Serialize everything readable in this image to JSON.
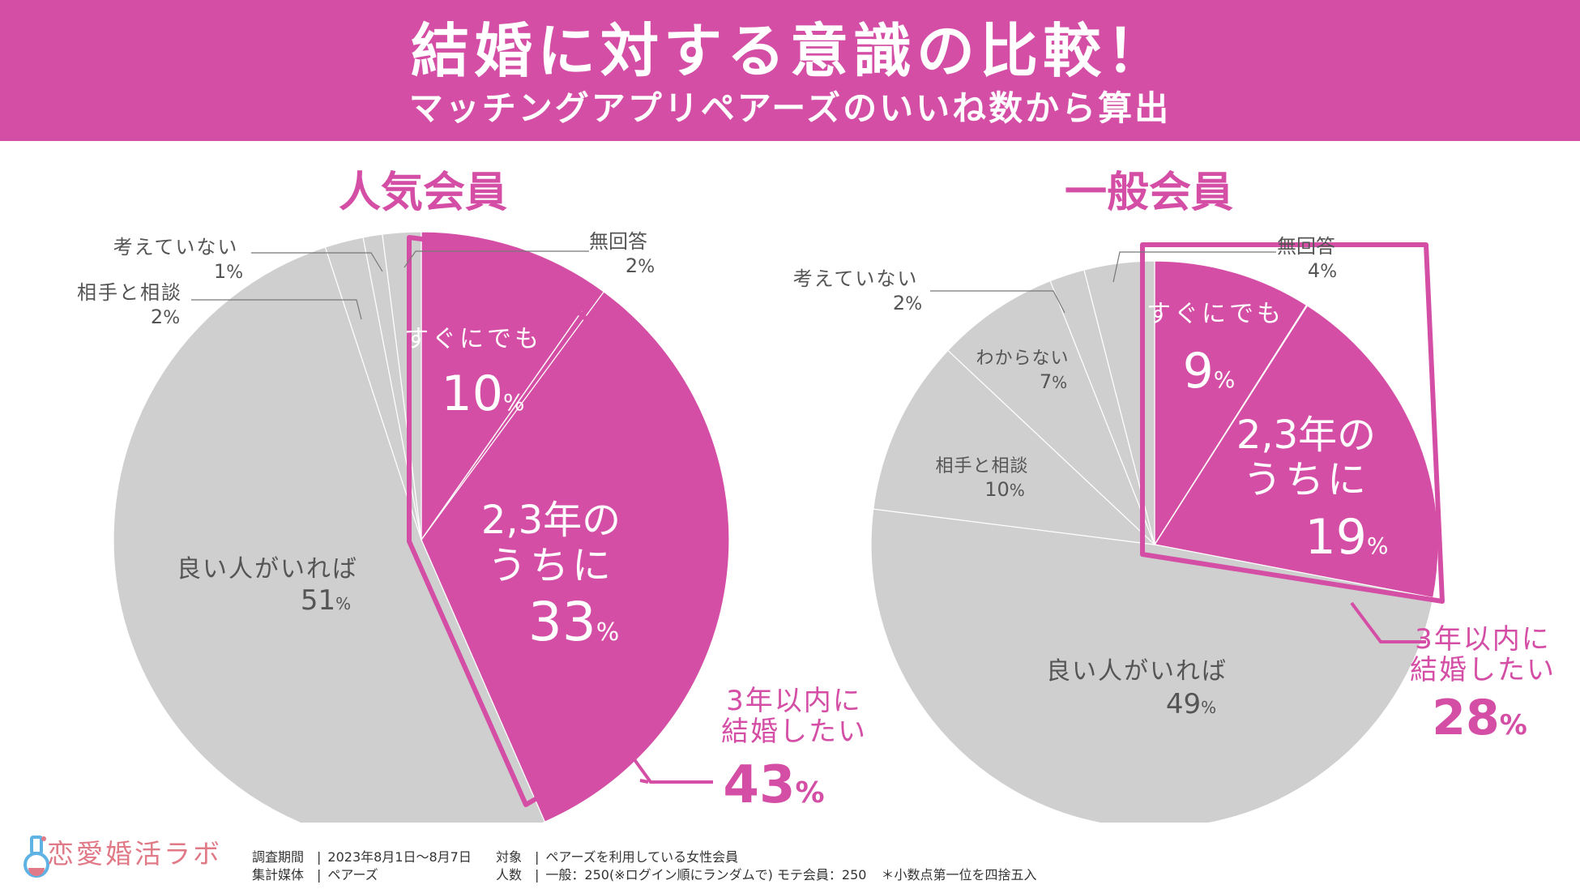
{
  "header": {
    "title": "結婚に対する意識の比較！",
    "subtitle": "マッチングアプリペアーズのいいね数から算出"
  },
  "colors": {
    "brand_pink": "#d44ea5",
    "slice_gray": "#d0cfd0",
    "label_gray": "#555555",
    "logo_pink": "#e07a87",
    "logo_blue": "#5fb2e4"
  },
  "chart_data": [
    {
      "type": "pie",
      "title": "人気会員",
      "slices": [
        {
          "label": "すぐにでも",
          "value": 10,
          "highlight": true
        },
        {
          "label": "2,3年のうちに",
          "value": 33,
          "highlight": true
        },
        {
          "label": "良い人がいれば",
          "value": 51,
          "highlight": false
        },
        {
          "label": "相手と相談",
          "value": 2,
          "highlight": false
        },
        {
          "label": "考えていない",
          "value": 1,
          "highlight": false
        },
        {
          "label": "無回答",
          "value": 2,
          "highlight": false
        }
      ],
      "summary": {
        "label": "3年以内に結婚したい",
        "value": 43
      }
    },
    {
      "type": "pie",
      "title": "一般会員",
      "slices": [
        {
          "label": "すぐにでも",
          "value": 9,
          "highlight": true
        },
        {
          "label": "2,3年のうちに",
          "value": 19,
          "highlight": true
        },
        {
          "label": "良い人がいれば",
          "value": 49,
          "highlight": false
        },
        {
          "label": "相手と相談",
          "value": 10,
          "highlight": false
        },
        {
          "label": "わからない",
          "value": 7,
          "highlight": false
        },
        {
          "label": "考えていない",
          "value": 2,
          "highlight": false
        },
        {
          "label": "無回答",
          "value": 4,
          "highlight": false
        }
      ],
      "summary": {
        "label": "3年以内に結婚したい",
        "value": 28
      }
    }
  ],
  "footer": {
    "logo_text": "恋愛婚活ラボ",
    "survey_period_label": "調査期間",
    "survey_period": "2023年8月1日～8月7日",
    "target_label": "対象",
    "target": "ペアーズを利用している女性会員",
    "media_label": "集計媒体",
    "media": "ペアーズ",
    "count_label": "人数",
    "count": "一般：250(※ログイン順にランダムで) モテ会員：250",
    "note": "＊小数点第一位を四捨五入"
  }
}
